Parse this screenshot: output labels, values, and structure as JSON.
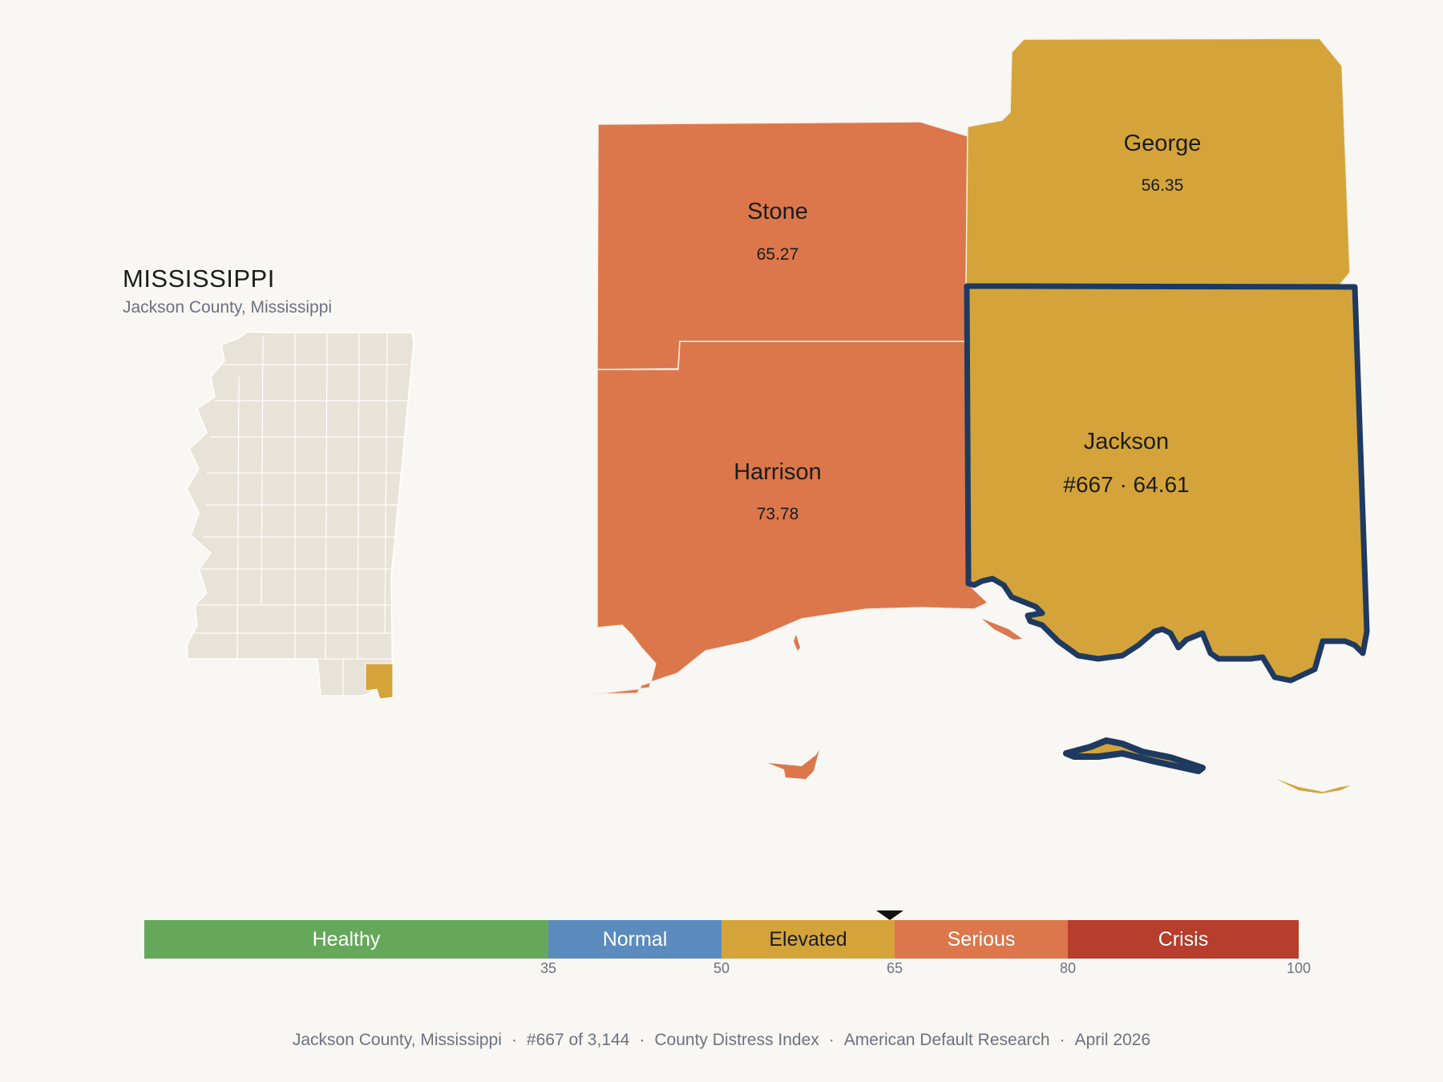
{
  "header": {
    "state_title": "MISSISSIPPI",
    "subtitle": "Jackson County, Mississippi"
  },
  "colors": {
    "healthy": "#66a85a",
    "normal": "#5b8bbd",
    "elevated": "#d4a43a",
    "serious": "#db774b",
    "crisis": "#b73d2c",
    "focus_outline": "#1f3a60",
    "inset_fill": "#e8e3d8",
    "background": "#f9f7f3"
  },
  "counties": [
    {
      "name": "Stone",
      "value": "65.27",
      "category": "serious"
    },
    {
      "name": "George",
      "value": "56.35",
      "category": "elevated"
    },
    {
      "name": "Harrison",
      "value": "73.78",
      "category": "serious"
    },
    {
      "name": "Jackson",
      "value": "#667 · 64.61",
      "category": "elevated",
      "focus": true
    }
  ],
  "legend": {
    "segments": [
      {
        "label": "Healthy",
        "min": 0,
        "max": 35
      },
      {
        "label": "Normal",
        "min": 35,
        "max": 50
      },
      {
        "label": "Elevated",
        "min": 50,
        "max": 65
      },
      {
        "label": "Serious",
        "min": 65,
        "max": 80
      },
      {
        "label": "Crisis",
        "min": 80,
        "max": 100
      }
    ],
    "ticks": [
      "35",
      "50",
      "65",
      "80",
      "100"
    ],
    "marker_value": 64.61
  },
  "footer": {
    "county": "Jackson County, Mississippi",
    "rank": "#667 of 3,144",
    "index": "County Distress Index",
    "source": "American Default Research",
    "date": "April 2026"
  }
}
